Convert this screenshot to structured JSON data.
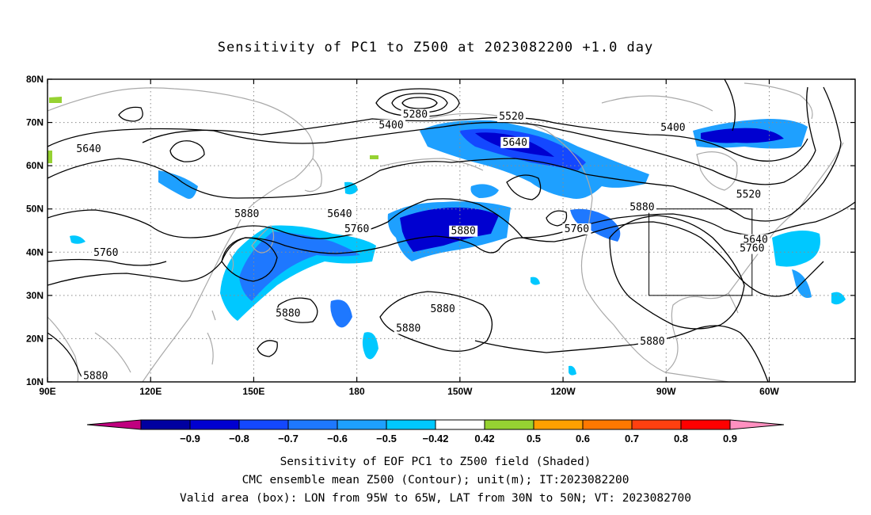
{
  "title": "Sensitivity of PC1 to Z500 at 2023082200 +1.0 day",
  "chart_data": {
    "type": "heatmap",
    "map_extent": {
      "lon_min": 90,
      "lon_max": 325,
      "lat_min": 10,
      "lat_max": 80
    },
    "x_ticks": [
      "90E",
      "120E",
      "150E",
      "180",
      "150W",
      "120W",
      "90W",
      "60W"
    ],
    "x_tick_lons": [
      90,
      120,
      150,
      180,
      210,
      240,
      270,
      300
    ],
    "y_ticks": [
      "80N",
      "70N",
      "60N",
      "50N",
      "40N",
      "30N",
      "20N",
      "10N"
    ],
    "y_tick_lats": [
      80,
      70,
      60,
      50,
      40,
      30,
      20,
      10
    ],
    "contour_labels": [
      {
        "text": "5280",
        "lon": 197,
        "lat": 71.5
      },
      {
        "text": "5400",
        "lon": 190,
        "lat": 69
      },
      {
        "text": "5520",
        "lon": 225,
        "lat": 71
      },
      {
        "text": "5640",
        "lon": 226,
        "lat": 65
      },
      {
        "text": "5400",
        "lon": 272,
        "lat": 68.5
      },
      {
        "text": "5640",
        "lon": 102,
        "lat": 63.5
      },
      {
        "text": "5520",
        "lon": 294,
        "lat": 53
      },
      {
        "text": "5880",
        "lon": 263,
        "lat": 50
      },
      {
        "text": "5640",
        "lon": 296,
        "lat": 42.5
      },
      {
        "text": "5760",
        "lon": 295,
        "lat": 40.5
      },
      {
        "text": "5640",
        "lon": 175,
        "lat": 48.5
      },
      {
        "text": "5880",
        "lon": 148,
        "lat": 48.5
      },
      {
        "text": "5760",
        "lon": 180,
        "lat": 45
      },
      {
        "text": "5880",
        "lon": 211,
        "lat": 44.5
      },
      {
        "text": "5760",
        "lon": 244,
        "lat": 45
      },
      {
        "text": "5760",
        "lon": 107,
        "lat": 39.5
      },
      {
        "text": "5880",
        "lon": 160,
        "lat": 25.5
      },
      {
        "text": "5880",
        "lon": 205,
        "lat": 26.5
      },
      {
        "text": "5880",
        "lon": 195,
        "lat": 22
      },
      {
        "text": "5880",
        "lon": 266,
        "lat": 19
      },
      {
        "text": "5880",
        "lon": 104,
        "lat": 11
      }
    ],
    "valid_box": {
      "lon_min": 265,
      "lon_max": 295,
      "lat_min": 30,
      "lat_max": 50
    },
    "colorbar": {
      "colors": [
        "#c0007f",
        "#0000a0",
        "#0000d0",
        "#1448ff",
        "#1e78ff",
        "#1ea0ff",
        "#00c8ff",
        "#ffffff",
        "#96d232",
        "#ffa000",
        "#ff7800",
        "#ff4010",
        "#ff0000",
        "#ff90c0"
      ],
      "labels": [
        "−0.9",
        "−0.8",
        "−0.7",
        "−0.6",
        "−0.5",
        "−0.42",
        "0.42",
        "0.5",
        "0.6",
        "0.7",
        "0.8",
        "0.9"
      ]
    }
  },
  "footer": {
    "line1": "Sensitivity of EOF PC1 to Z500 field (Shaded)",
    "line2": "CMC ensemble mean Z500 (Contour); unit(m); IT:2023082200",
    "line3": "Valid area (box): LON from 95W to 65W, LAT from 30N to 50N; VT: 2023082700"
  }
}
